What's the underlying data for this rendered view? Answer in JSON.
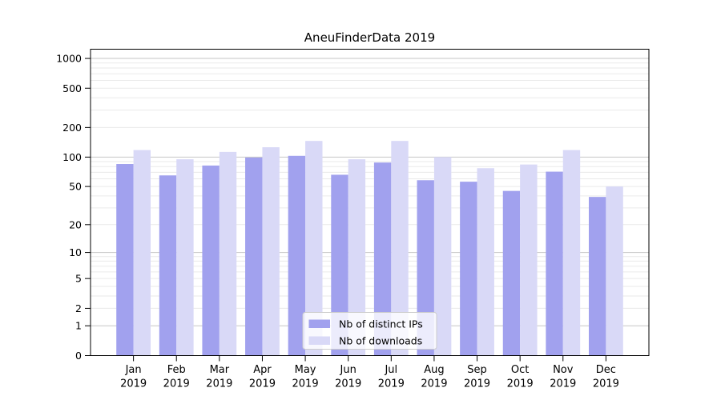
{
  "figure": {
    "background": "#ffffff"
  },
  "chart_data": {
    "type": "bar",
    "title": "AneuFinderData 2019",
    "scale": "log1p",
    "grid": "on",
    "grid_major_color": "#c6c6c6",
    "grid_minor_color": "#eaeaea",
    "categories": [
      "Jan",
      "Feb",
      "Mar",
      "Apr",
      "May",
      "Jun",
      "Jul",
      "Aug",
      "Sep",
      "Oct",
      "Nov",
      "Dec"
    ],
    "year_label": "2019",
    "y_ticks": [
      0,
      1,
      2,
      5,
      10,
      20,
      50,
      100,
      200,
      500,
      1000
    ],
    "ylim": [
      0,
      1240
    ],
    "legend_position": "lower-center",
    "series": [
      {
        "name": "Nb of distinct IPs",
        "color": "#a1a1ee",
        "values": [
          85,
          65,
          82,
          99,
          103,
          66,
          88,
          58,
          56,
          45,
          71,
          39
        ]
      },
      {
        "name": "Nb of downloads",
        "color": "#d9d9f7",
        "values": [
          118,
          95,
          113,
          126,
          146,
          95,
          146,
          100,
          77,
          84,
          118,
          50
        ]
      }
    ]
  }
}
